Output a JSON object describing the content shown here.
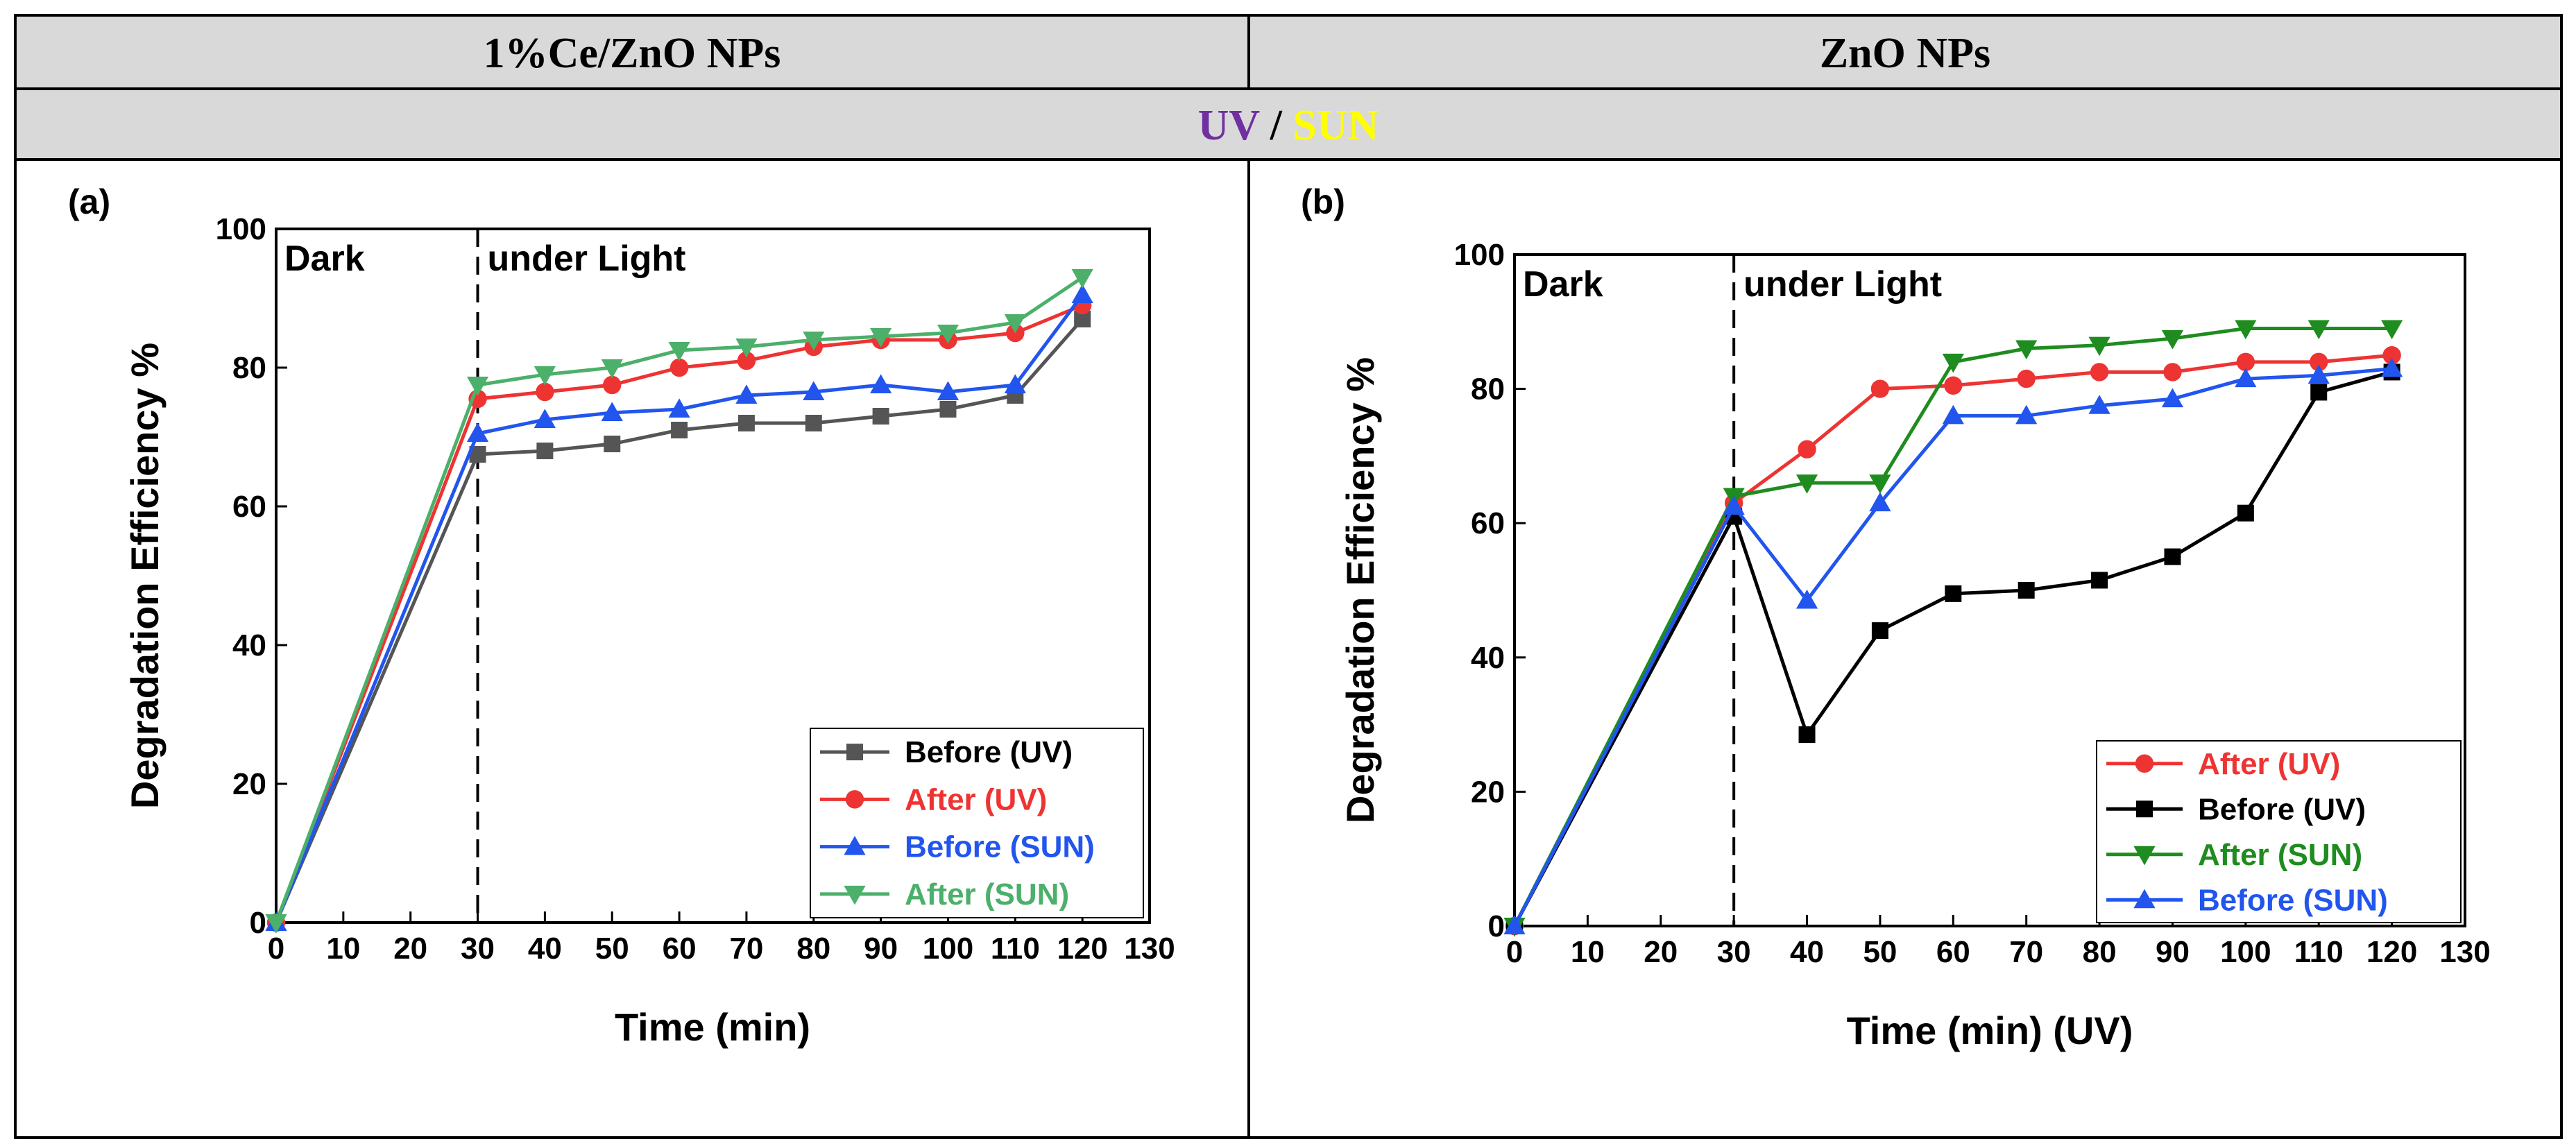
{
  "header": {
    "left_title": "1%Ce/ZnO NPs",
    "right_title": "ZnO NPs",
    "uv_label": "UV",
    "slash": " / ",
    "sun_label": "SUN",
    "uv_color": "#7030a0",
    "sun_color": "#ffff00",
    "band_color": "#d9d9d9"
  },
  "chart_data": [
    {
      "type": "line",
      "panel_label": "(a)",
      "xlabel": "Time (min)",
      "ylabel": "Degradation Efficiency %",
      "xlim": [
        0,
        130
      ],
      "ylim": [
        0,
        100
      ],
      "xticks": [
        0,
        10,
        20,
        30,
        40,
        50,
        60,
        70,
        80,
        90,
        100,
        110,
        120,
        130
      ],
      "yticks": [
        0,
        20,
        40,
        60,
        80,
        100
      ],
      "divider_x": 30,
      "region_labels": [
        "Dark",
        "under Light"
      ],
      "legend_position": "bottom-right",
      "x": [
        0,
        30,
        40,
        50,
        60,
        70,
        80,
        90,
        100,
        110,
        120
      ],
      "series": [
        {
          "name": "Before (UV)",
          "color": "#555555",
          "marker": "square",
          "values": [
            0,
            67.5,
            68,
            69,
            71,
            72,
            72,
            73,
            74,
            76,
            87
          ]
        },
        {
          "name": "After (UV)",
          "color": "#ee3333",
          "marker": "circle",
          "values": [
            0,
            75.5,
            76.5,
            77.5,
            80,
            81,
            83,
            84,
            84,
            85,
            89
          ]
        },
        {
          "name": "Before (SUN)",
          "color": "#2255ee",
          "marker": "triangle-up",
          "values": [
            0,
            70.5,
            72.5,
            73.5,
            74,
            76,
            76.5,
            77.5,
            76.5,
            77.5,
            90.5
          ]
        },
        {
          "name": "After (SUN)",
          "color": "#4caf6a",
          "marker": "triangle-down",
          "values": [
            0,
            77.5,
            79,
            80,
            82.5,
            83,
            84,
            84.5,
            85,
            86.5,
            93
          ]
        }
      ]
    },
    {
      "type": "line",
      "panel_label": "(b)",
      "xlabel": "Time (min) (UV)",
      "ylabel": "Degradation Efficiency %",
      "xlim": [
        0,
        130
      ],
      "ylim": [
        0,
        100
      ],
      "xticks": [
        0,
        10,
        20,
        30,
        40,
        50,
        60,
        70,
        80,
        90,
        100,
        110,
        120,
        130
      ],
      "yticks": [
        0,
        20,
        40,
        60,
        80,
        100
      ],
      "divider_x": 30,
      "region_labels": [
        "Dark",
        "under Light"
      ],
      "legend_position": "bottom-right",
      "x": [
        0,
        30,
        40,
        50,
        60,
        70,
        80,
        90,
        100,
        110,
        120
      ],
      "series": [
        {
          "name": "After (UV)",
          "color": "#ee3333",
          "marker": "circle",
          "values": [
            0,
            63,
            71,
            80,
            80.5,
            81.5,
            82.5,
            82.5,
            84,
            84,
            85
          ]
        },
        {
          "name": "Before (UV)",
          "color": "#000000",
          "marker": "square",
          "values": [
            0,
            61,
            28.5,
            44,
            49.5,
            50,
            51.5,
            55,
            61.5,
            79.5,
            82.5
          ]
        },
        {
          "name": "After (SUN)",
          "color": "#1e8c1e",
          "marker": "triangle-down",
          "values": [
            0,
            64,
            66,
            66,
            84,
            86,
            86.5,
            87.5,
            89,
            89,
            89
          ]
        },
        {
          "name": "Before (SUN)",
          "color": "#2255ee",
          "marker": "triangle-up",
          "values": [
            0,
            62.5,
            48.5,
            63,
            76,
            76,
            77.5,
            78.5,
            81.5,
            82,
            83
          ]
        }
      ]
    }
  ]
}
